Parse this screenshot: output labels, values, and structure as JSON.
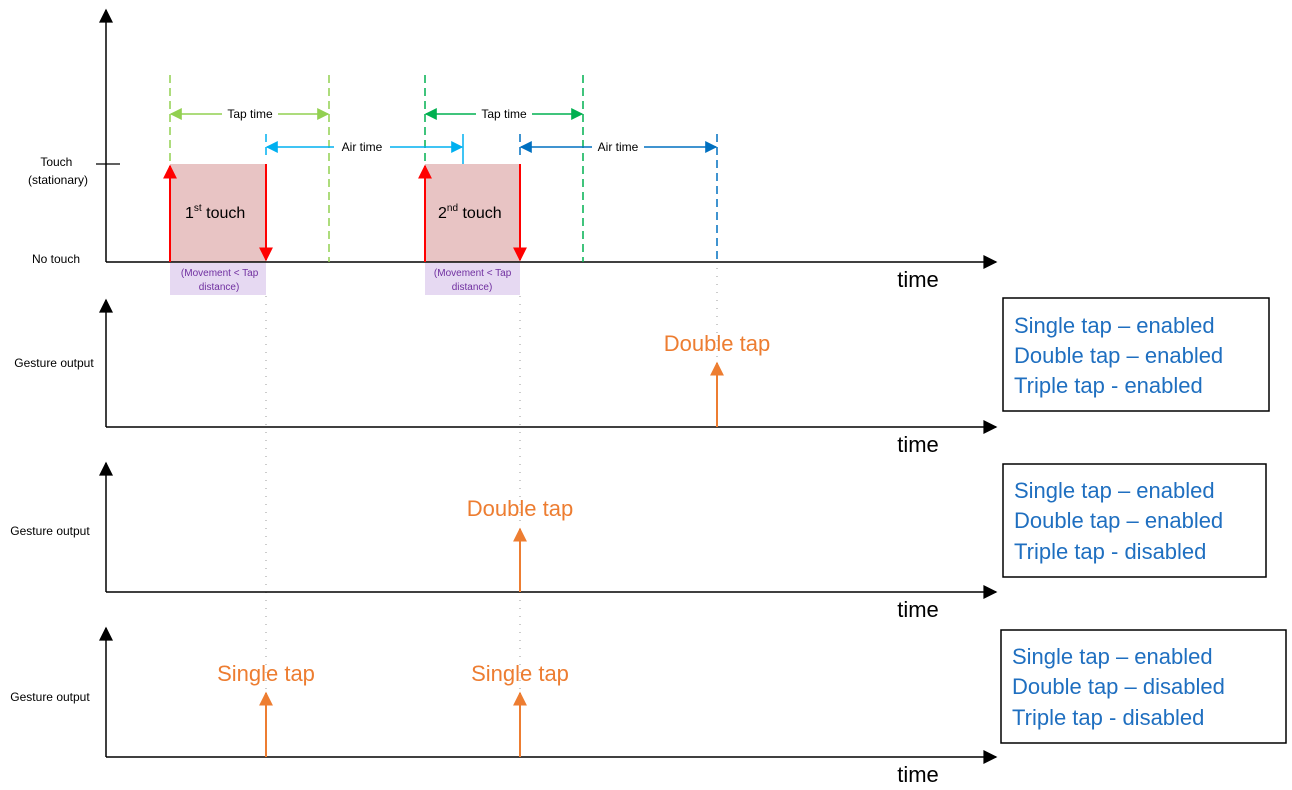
{
  "axes": {
    "top_y_labels": {
      "touch_line1": "Touch",
      "touch_line2": "(stationary)",
      "no_touch": "No touch"
    },
    "time_label": "time",
    "gesture_output_label": "Gesture output"
  },
  "intervals": {
    "tap_time": "Tap time",
    "air_time": "Air time"
  },
  "touches": [
    {
      "prefix": "1",
      "sup": "st",
      "suffix": " touch"
    },
    {
      "prefix": "2",
      "sup": "nd",
      "suffix": " touch"
    }
  ],
  "movement_note": {
    "line1": "(Movement < Tap",
    "line2": "distance)"
  },
  "panels": [
    {
      "gestures": [
        "Double tap"
      ],
      "settings": [
        "Single tap – enabled",
        "Double tap – enabled",
        "Triple tap - enabled"
      ]
    },
    {
      "gestures": [
        "Double tap"
      ],
      "settings": [
        "Single tap – enabled",
        "Double tap – enabled",
        "Triple tap - disabled"
      ]
    },
    {
      "gestures": [
        "Single tap",
        "Single tap"
      ],
      "settings": [
        "Single tap – enabled",
        "Double tap – disabled",
        "Triple tap - disabled"
      ]
    }
  ],
  "colors": {
    "touch_fill": "#e8c4c4",
    "touch_edge": "#ff0000",
    "tap_time_1": "#92d050",
    "tap_time_2": "#00b050",
    "air_time_1": "#00b0f0",
    "air_time_2": "#0070c0",
    "gesture": "#ed7d31",
    "settings_text": "#1f6fc0",
    "note_bg": "#e6d9f2",
    "note_text": "#7030a0"
  }
}
